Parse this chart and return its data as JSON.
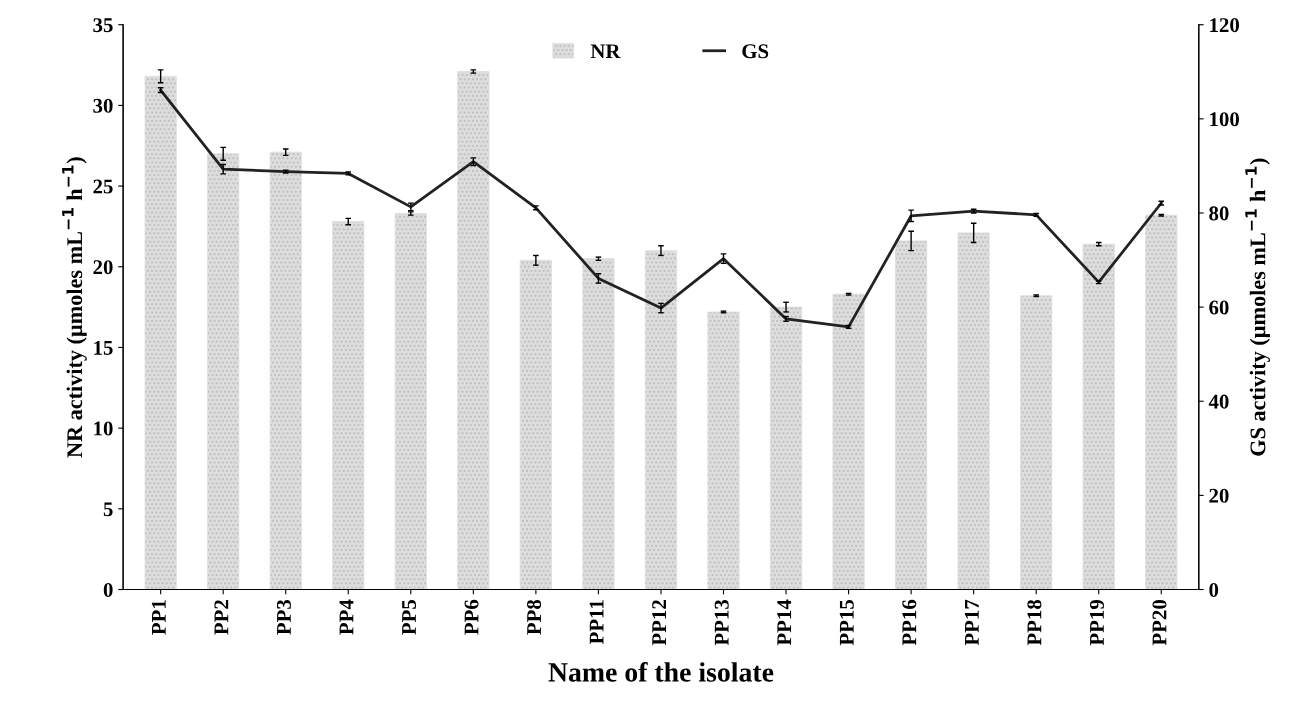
{
  "chart_data": {
    "type": "bar",
    "xlabel": "Name of the isolate",
    "ylabel": "NR activity (µmoles mL$^{−1}$ h$^{−1}$)",
    "y2label": "GS activity (µmoles mL$^{−1}$ h$^{−1}$)",
    "categories": [
      "PP1",
      "PP2",
      "PP3",
      "PP4",
      "PP5",
      "PP6",
      "PP8",
      "PP11",
      "PP12",
      "PP13",
      "PP14",
      "PP15",
      "PP16",
      "PP17",
      "PP18",
      "PP19",
      "PP20"
    ],
    "series": [
      {
        "name": "NR",
        "color": "#dddddd",
        "values": [
          31.8,
          27.0,
          27.1,
          22.8,
          23.3,
          32.1,
          20.4,
          20.5,
          21.0,
          17.2,
          17.5,
          18.3,
          21.6,
          22.1,
          18.2,
          21.4,
          23.2
        ],
        "errors": [
          0.4,
          0.4,
          0.2,
          0.2,
          0.1,
          0.1,
          0.3,
          0.1,
          0.3,
          0.05,
          0.3,
          0.05,
          0.6,
          0.6,
          0.05,
          0.1,
          0.05
        ]
      },
      {
        "name": "GS",
        "type": "line",
        "axis": "y2",
        "color": "#222222",
        "values": [
          106.1,
          89.3,
          88.8,
          88.4,
          81.3,
          90.9,
          81.1,
          66.1,
          59.8,
          70.3,
          57.5,
          55.8,
          79.4,
          80.4,
          79.6,
          65.3,
          82.1
        ],
        "errors": [
          0.5,
          1.0,
          0.3,
          0.3,
          0.8,
          0.8,
          0.4,
          1.0,
          1.0,
          1.0,
          0.5,
          0.3,
          1.2,
          0.4,
          0.3,
          0.3,
          0.4
        ]
      }
    ],
    "ylim": [
      0,
      35
    ],
    "yticks": [
      0,
      5,
      10,
      15,
      20,
      25,
      30,
      35
    ],
    "y2lim": [
      0,
      120
    ],
    "y2ticks": [
      0,
      20,
      40,
      60,
      80,
      100,
      120
    ],
    "legend": "top",
    "grid": false,
    "marker": "none"
  }
}
